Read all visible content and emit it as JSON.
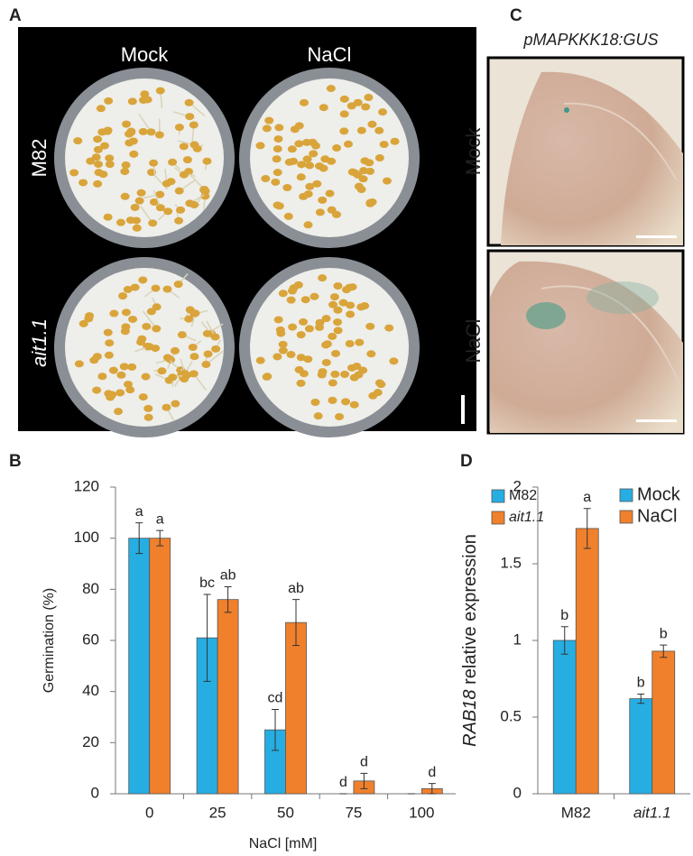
{
  "panels": {
    "A": {
      "label": "A",
      "columns": [
        "Mock",
        "NaCl"
      ],
      "rows": [
        "M82",
        "ait1.1"
      ]
    },
    "C": {
      "label": "C",
      "title": "pMAPKKK18:GUS",
      "rows": [
        "Mock",
        "NaCl"
      ]
    },
    "B": {
      "label": "B"
    },
    "D": {
      "label": "D"
    }
  },
  "chart_data": [
    {
      "type": "bar",
      "categories": [
        "0",
        "25",
        "50",
        "75",
        "100"
      ],
      "xlabel": "NaCl [mM]",
      "ylabel": "Germination  (%)",
      "ylim": [
        0,
        120
      ],
      "yticks": [
        0,
        20,
        40,
        60,
        80,
        100,
        120
      ],
      "legend": "upper right",
      "series": [
        {
          "name": "M82",
          "color": "#26aee3",
          "values": [
            100,
            61,
            25,
            0,
            0
          ],
          "errors": [
            6,
            17,
            8,
            0,
            0
          ],
          "letters": [
            "a",
            "bc",
            "cd",
            "d",
            null
          ]
        },
        {
          "name": "ait1.1",
          "color": "#f0802c",
          "font_style": "italic",
          "values": [
            100,
            76,
            67,
            5,
            2
          ],
          "errors": [
            3,
            5,
            9,
            3,
            2
          ],
          "letters": [
            "a",
            "ab",
            "ab",
            "d",
            "d"
          ]
        }
      ]
    },
    {
      "type": "bar",
      "categories": [
        "M82",
        "ait1.1"
      ],
      "ylabel_gene": "RAB18",
      "ylabel": "relative expression",
      "ylim": [
        0,
        2
      ],
      "yticks": [
        0,
        0.5,
        1,
        1.5,
        2
      ],
      "legend": "upper right",
      "series": [
        {
          "name": "Mock",
          "color": "#26aee3",
          "values": [
            1,
            0.62
          ],
          "errors": [
            0.09,
            0.03
          ],
          "letters": [
            "b",
            "b"
          ]
        },
        {
          "name": "NaCl",
          "color": "#f0802c",
          "values": [
            1.73,
            0.93
          ],
          "errors": [
            0.13,
            0.04
          ],
          "letters": [
            "a",
            "b"
          ]
        }
      ]
    }
  ]
}
